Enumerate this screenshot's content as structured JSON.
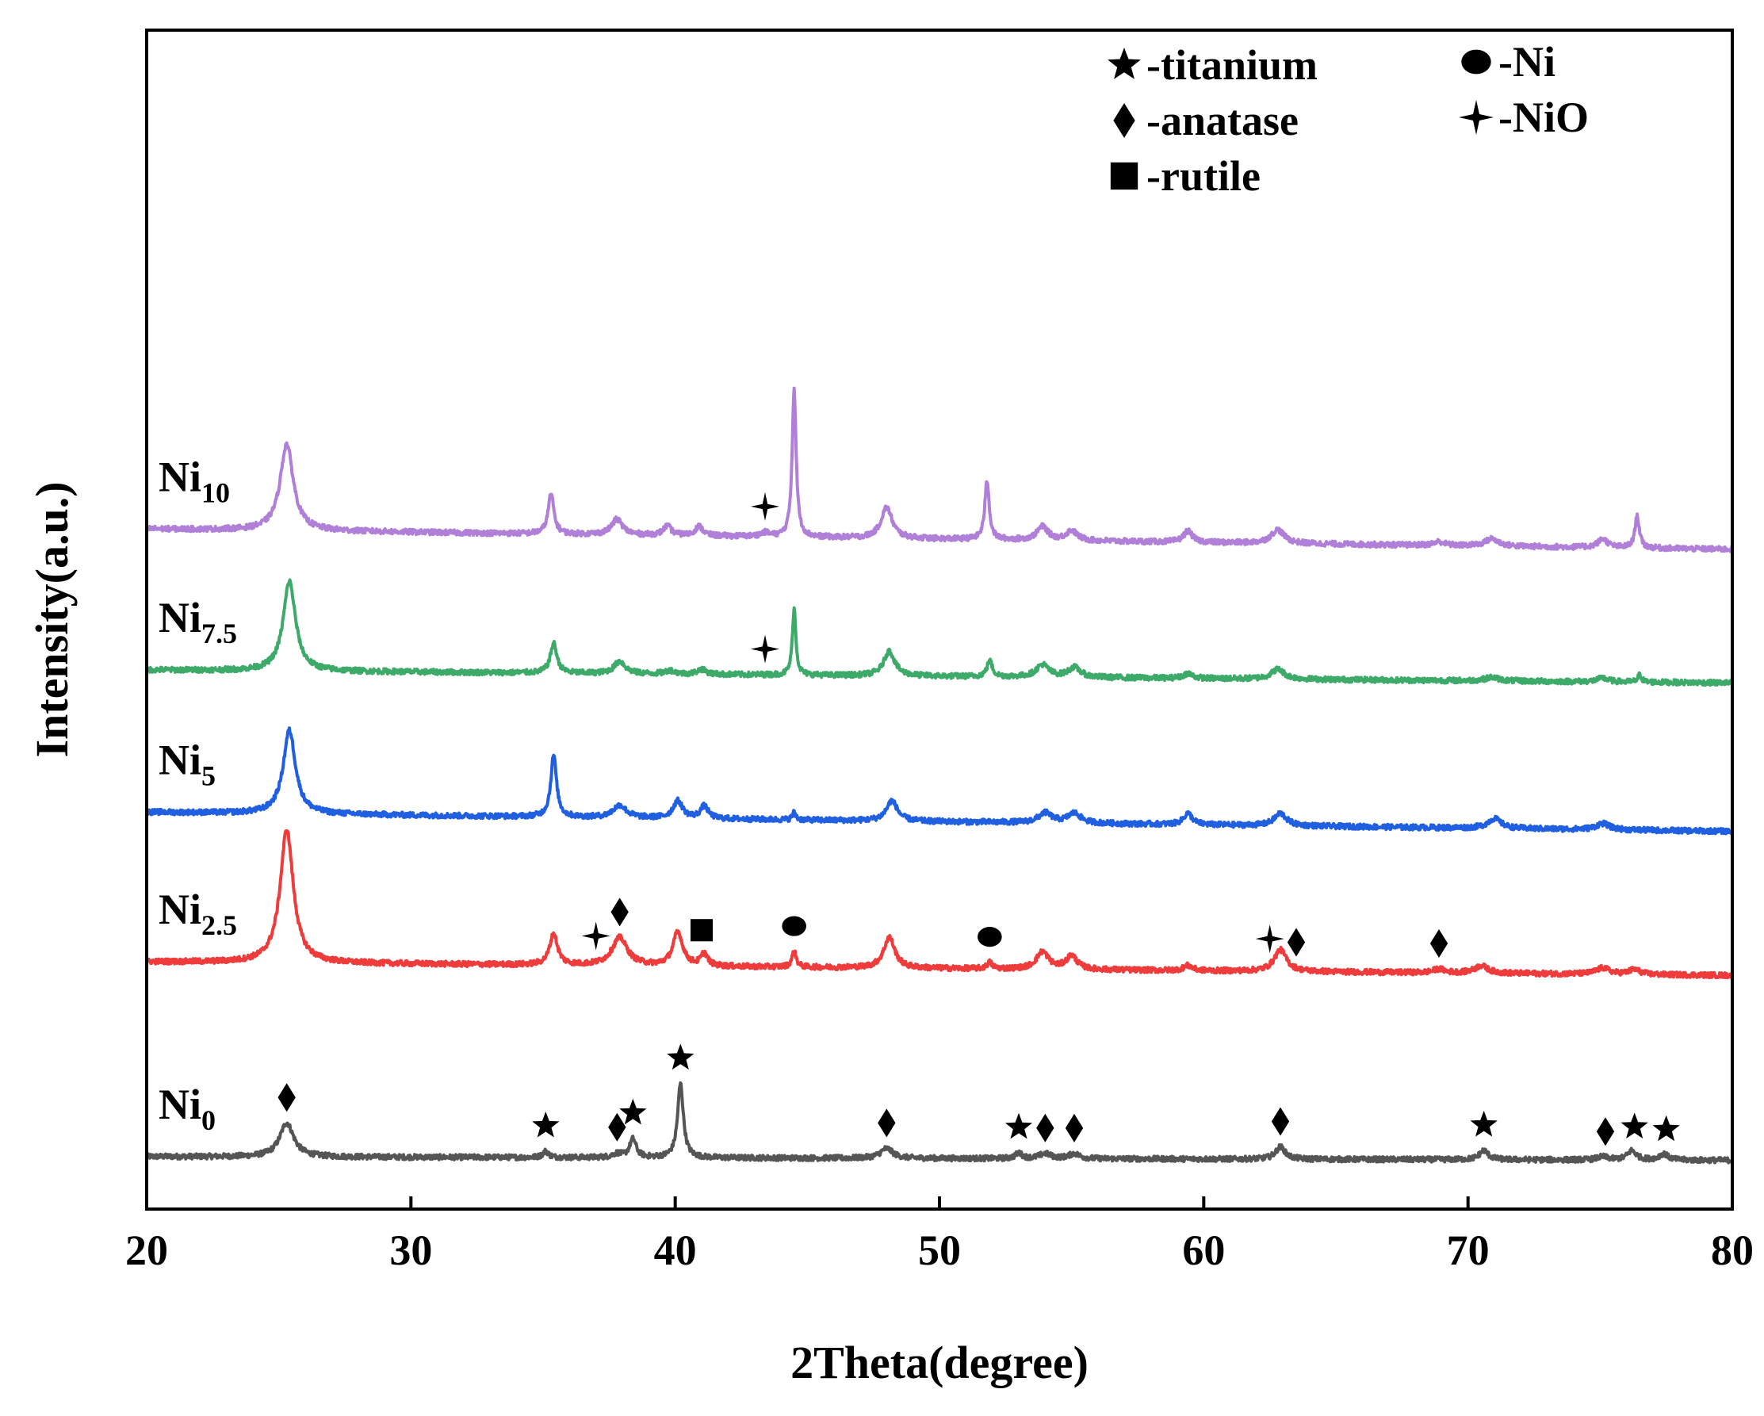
{
  "chart_data": {
    "type": "line",
    "title": "",
    "xlabel": "2Theta(degree)",
    "ylabel": "Intensity(a.u.)",
    "xlim": [
      20,
      80
    ],
    "xticks": [
      20,
      30,
      40,
      50,
      60,
      70,
      80
    ],
    "yticks_shown": false,
    "legend": {
      "placement": "top-right",
      "entries": [
        {
          "marker": "star",
          "label": "-titanium"
        },
        {
          "marker": "circle",
          "label": "-Ni"
        },
        {
          "marker": "diamond",
          "label": "-anatase"
        },
        {
          "marker": "cross",
          "label": "-NiO"
        },
        {
          "marker": "square",
          "label": "-rutile"
        }
      ]
    },
    "series": [
      {
        "name": "Ni0",
        "label_base": "Ni",
        "label_sub": "0",
        "color": "#555555",
        "baseline": [
          [
            20,
            0.4
          ],
          [
            80,
            0.34
          ]
        ],
        "peaks": [
          [
            25.3,
            0.55,
            0.32
          ],
          [
            35.1,
            0.1,
            0.13
          ],
          [
            37.8,
            0.06,
            0.2
          ],
          [
            38.4,
            0.3,
            0.15
          ],
          [
            40.2,
            1.2,
            0.13
          ],
          [
            48.0,
            0.16,
            0.28
          ],
          [
            53.0,
            0.09,
            0.15
          ],
          [
            54.0,
            0.08,
            0.25
          ],
          [
            55.1,
            0.08,
            0.25
          ],
          [
            62.9,
            0.2,
            0.22
          ],
          [
            70.6,
            0.15,
            0.2
          ],
          [
            75.1,
            0.05,
            0.25
          ],
          [
            76.2,
            0.15,
            0.2
          ],
          [
            77.4,
            0.1,
            0.2
          ]
        ],
        "markers": [
          {
            "type": "diamond",
            "x": 25.3
          },
          {
            "type": "star",
            "x": 35.1
          },
          {
            "type": "diamond",
            "x": 37.8
          },
          {
            "type": "star",
            "x": 38.4
          },
          {
            "type": "star",
            "x": 40.2
          },
          {
            "type": "diamond",
            "x": 48.0
          },
          {
            "type": "star",
            "x": 53.0
          },
          {
            "type": "diamond",
            "x": 54.0
          },
          {
            "type": "diamond",
            "x": 55.1
          },
          {
            "type": "diamond",
            "x": 62.9
          },
          {
            "type": "star",
            "x": 70.6
          },
          {
            "type": "diamond",
            "x": 75.2
          },
          {
            "type": "star",
            "x": 76.3
          },
          {
            "type": "star",
            "x": 77.5
          }
        ]
      },
      {
        "name": "Ni2.5",
        "label_base": "Ni",
        "label_sub": "2.5",
        "color": "#ee3b3b",
        "baseline": [
          [
            20,
            3.55
          ],
          [
            80,
            3.33
          ]
        ],
        "peaks": [
          [
            25.3,
            2.15,
            0.3
          ],
          [
            35.4,
            0.5,
            0.18
          ],
          [
            37.9,
            0.45,
            0.35
          ],
          [
            40.1,
            0.55,
            0.22
          ],
          [
            41.1,
            0.2,
            0.15
          ],
          [
            44.5,
            0.25,
            0.1
          ],
          [
            48.1,
            0.5,
            0.25
          ],
          [
            51.9,
            0.1,
            0.12
          ],
          [
            53.9,
            0.28,
            0.28
          ],
          [
            55.0,
            0.22,
            0.25
          ],
          [
            59.4,
            0.08,
            0.2
          ],
          [
            62.9,
            0.35,
            0.28
          ],
          [
            68.9,
            0.06,
            0.25
          ],
          [
            70.5,
            0.12,
            0.3
          ],
          [
            75.1,
            0.1,
            0.3
          ],
          [
            76.3,
            0.08,
            0.25
          ]
        ],
        "markers": [
          {
            "type": "cross",
            "x": 37.0
          },
          {
            "type": "diamond",
            "x": 37.9
          },
          {
            "type": "square",
            "x": 41.0
          },
          {
            "type": "circle",
            "x": 44.5
          },
          {
            "type": "circle",
            "x": 51.9
          },
          {
            "type": "cross",
            "x": 62.5
          },
          {
            "type": "diamond",
            "x": 63.5
          },
          {
            "type": "diamond",
            "x": 68.9
          }
        ]
      },
      {
        "name": "Ni5",
        "label_base": "Ni",
        "label_sub": "5",
        "color": "#2060e0",
        "baseline": [
          [
            20,
            5.97
          ],
          [
            80,
            5.66
          ]
        ],
        "peaks": [
          [
            25.4,
            1.35,
            0.28
          ],
          [
            35.4,
            1.0,
            0.13
          ],
          [
            37.9,
            0.2,
            0.3
          ],
          [
            40.1,
            0.28,
            0.22
          ],
          [
            41.1,
            0.2,
            0.18
          ],
          [
            44.5,
            0.12,
            0.08
          ],
          [
            48.2,
            0.33,
            0.25
          ],
          [
            54.0,
            0.16,
            0.3
          ],
          [
            55.1,
            0.16,
            0.3
          ],
          [
            59.4,
            0.18,
            0.2
          ],
          [
            62.9,
            0.2,
            0.28
          ],
          [
            71.0,
            0.16,
            0.3
          ],
          [
            75.1,
            0.1,
            0.3
          ]
        ],
        "markers": []
      },
      {
        "name": "Ni7.5",
        "label_base": "Ni",
        "label_sub": "7.5",
        "color": "#3daa6a",
        "baseline": [
          [
            20,
            8.27
          ],
          [
            80,
            8.06
          ]
        ],
        "peaks": [
          [
            25.4,
            1.45,
            0.28
          ],
          [
            35.4,
            0.48,
            0.15
          ],
          [
            37.9,
            0.2,
            0.25
          ],
          [
            39.8,
            0.06,
            0.2
          ],
          [
            41.0,
            0.08,
            0.2
          ],
          [
            44.5,
            1.08,
            0.08
          ],
          [
            48.1,
            0.4,
            0.25
          ],
          [
            51.9,
            0.26,
            0.12
          ],
          [
            53.9,
            0.2,
            0.28
          ],
          [
            55.1,
            0.16,
            0.28
          ],
          [
            59.4,
            0.08,
            0.2
          ],
          [
            62.8,
            0.16,
            0.3
          ],
          [
            70.9,
            0.06,
            0.3
          ],
          [
            75.1,
            0.06,
            0.25
          ],
          [
            76.5,
            0.12,
            0.08
          ]
        ],
        "markers": [
          {
            "type": "cross",
            "x": 43.4
          }
        ]
      },
      {
        "name": "Ni10",
        "label_base": "Ni",
        "label_sub": "10",
        "color": "#b07fd8",
        "baseline": [
          [
            20,
            10.55
          ],
          [
            80,
            10.22
          ]
        ],
        "peaks": [
          [
            25.3,
            1.4,
            0.3
          ],
          [
            35.3,
            0.65,
            0.13
          ],
          [
            37.8,
            0.25,
            0.25
          ],
          [
            39.7,
            0.15,
            0.18
          ],
          [
            40.9,
            0.15,
            0.18
          ],
          [
            43.4,
            0.06,
            0.2
          ],
          [
            44.5,
            2.4,
            0.09
          ],
          [
            48.0,
            0.5,
            0.25
          ],
          [
            51.8,
            0.95,
            0.1
          ],
          [
            53.9,
            0.22,
            0.25
          ],
          [
            55.0,
            0.16,
            0.25
          ],
          [
            59.4,
            0.18,
            0.2
          ],
          [
            62.8,
            0.22,
            0.3
          ],
          [
            68.9,
            0.06,
            0.25
          ],
          [
            70.9,
            0.12,
            0.3
          ],
          [
            75.1,
            0.14,
            0.22
          ],
          [
            76.4,
            0.52,
            0.1
          ]
        ],
        "markers": [
          {
            "type": "cross",
            "x": 43.4
          }
        ]
      }
    ]
  }
}
